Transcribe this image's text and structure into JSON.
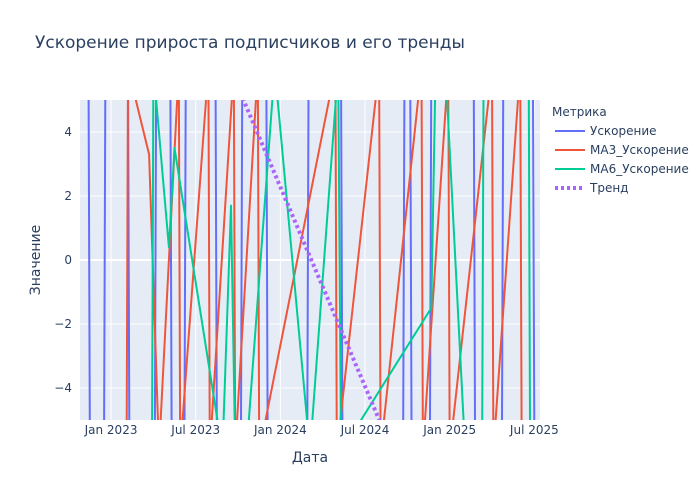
{
  "chart_data": {
    "type": "line",
    "title": "Ускорение прироста подписчиков и его тренды",
    "xlabel": "Дата",
    "ylabel": "Значение",
    "legend_title": "Метрика",
    "legend_placement": "top-right",
    "grid": true,
    "x_ticks": [
      "Jan 2023",
      "Jul 2023",
      "Jan 2024",
      "Jul 2024",
      "Jan 2025",
      "Jul 2025"
    ],
    "x_tick_values": [
      0,
      6,
      12,
      18,
      24,
      30
    ],
    "xlim": [
      -2.2,
      30.4
    ],
    "ylim": [
      -5,
      5
    ],
    "y_ticks": [
      4,
      2,
      0,
      -2,
      -4
    ],
    "y_tick_labels": [
      "4",
      "2",
      "0",
      "−2",
      "−4"
    ],
    "series": [
      {
        "name": "Ускорение",
        "color": "#636efa",
        "dash": "solid",
        "x": [
          -1.6,
          -1.5,
          -0.5,
          -0.4,
          1.2,
          1.3,
          3.1,
          3.2,
          4.2,
          4.3,
          5.2,
          5.3,
          7.4,
          7.5,
          9.2,
          9.3,
          11.0,
          11.1,
          13.9,
          14.0,
          16.3,
          16.4,
          20.7,
          20.8,
          21.2,
          21.3,
          22.6,
          22.7,
          25.7,
          25.8,
          27.7,
          27.8,
          29.9,
          30.0
        ],
        "y": [
          6,
          -6,
          -6,
          6,
          6,
          -6,
          -6,
          6,
          6,
          -6,
          -6,
          6,
          6,
          -6,
          -6,
          6,
          6,
          -6,
          -6,
          6,
          6,
          -6,
          -6,
          6,
          6,
          -6,
          -6,
          6,
          6,
          -6,
          -6,
          6,
          6,
          -6
        ]
      },
      {
        "name": "MA3_Ускорение",
        "color": "#ef553b",
        "dash": "solid",
        "x": [
          1.1,
          1.2,
          2.7,
          3.4,
          4.8,
          4.9,
          6.9,
          7.0,
          8.7,
          8.8,
          10.4,
          10.5,
          15.9,
          16.0,
          19.0,
          19.1,
          22.0,
          22.1,
          23.9,
          24.0,
          27.0,
          27.1,
          29.0,
          29.1
        ],
        "y": [
          -6,
          6,
          3.3,
          -6,
          6,
          -6,
          6,
          -6,
          6,
          -6,
          6,
          -6,
          6,
          -6,
          6,
          -6,
          6,
          -6,
          6,
          -6,
          6,
          -6,
          6,
          -6
        ]
      },
      {
        "name": "MA6_Ускорение",
        "color": "#00cc96",
        "dash": "solid",
        "x": [
          2.9,
          3.0,
          4.1,
          4.5,
          7.9,
          8.5,
          8.8,
          9.6,
          11.6,
          14.1,
          16.1,
          16.3,
          22.7,
          23.0,
          23.7,
          25.1,
          26.3,
          26.4,
          29.6,
          29.7,
          30.3
        ],
        "y": [
          -6,
          6,
          0.4,
          3.5,
          -6,
          1.7,
          -6,
          -6,
          6,
          -6,
          6,
          -6,
          -1.5,
          6,
          6,
          -6,
          -6,
          6,
          6,
          -6,
          -6
        ]
      },
      {
        "name": "Тренд",
        "color": "#ab63fa",
        "dash": "dot",
        "x": [
          9.0,
          19.2
        ],
        "y": [
          5.4,
          -5.2
        ]
      }
    ]
  }
}
